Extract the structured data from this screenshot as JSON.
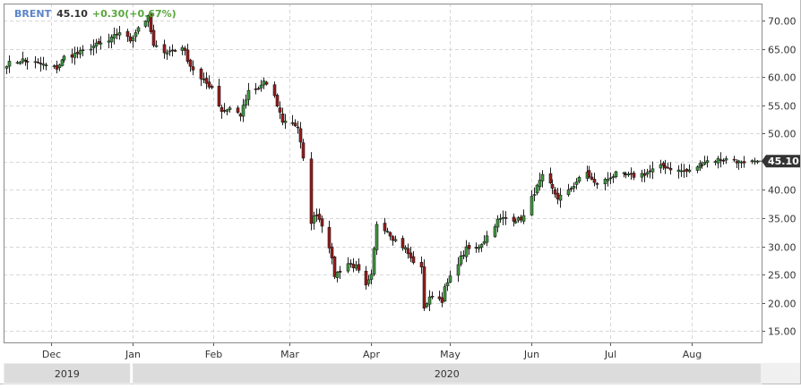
{
  "header": {
    "symbol": "BRENT",
    "last": "45.10",
    "change": "+0.30(+0.67%)"
  },
  "colors": {
    "up_candle": "#3c9a3c",
    "down_candle": "#9a1a1a",
    "wick": "#222222",
    "symbol": "#5b84c8",
    "change_positive": "#58a63c",
    "grid": "#d7d7d7",
    "price_tag_bg": "#333333",
    "year_band": "#dcdcdc"
  },
  "chart_data": {
    "type": "candlestick",
    "ylim": [
      13,
      73
    ],
    "y_ticks": [
      15,
      20,
      25,
      30,
      35,
      40,
      45,
      50,
      55,
      60,
      65,
      70
    ],
    "y_tick_labels": [
      "15.00",
      "20.00",
      "25.00",
      "30.00",
      "35.00",
      "40.00",
      "45.00",
      "50.00",
      "55.00",
      "60.00",
      "65.00",
      "70.00"
    ],
    "last_price_label": "45.10",
    "last_price": 45.1,
    "grid": true,
    "x_start": "2019-11-14",
    "x_end": "2020-08-26",
    "x_ticks": [
      {
        "date": "2019-12-01",
        "label": "Dec"
      },
      {
        "date": "2020-01-01",
        "label": "Jan"
      },
      {
        "date": "2020-02-01",
        "label": "Feb"
      },
      {
        "date": "2020-03-01",
        "label": "Mar"
      },
      {
        "date": "2020-04-01",
        "label": "Apr"
      },
      {
        "date": "2020-05-01",
        "label": "May"
      },
      {
        "date": "2020-06-01",
        "label": "Jun"
      },
      {
        "date": "2020-07-01",
        "label": "Jul"
      },
      {
        "date": "2020-08-01",
        "label": "Aug"
      }
    ],
    "year_bands": [
      {
        "label": "2019",
        "from": "2019-11-14",
        "to": "2019-12-31"
      },
      {
        "label": "2020",
        "from": "2020-01-01",
        "to": "2020-08-26"
      }
    ],
    "price_path": [
      [
        "2019-11-14",
        62.3
      ],
      [
        "2019-11-20",
        63.0
      ],
      [
        "2019-11-25",
        62.5
      ],
      [
        "2019-11-29",
        62.0
      ],
      [
        "2019-12-03",
        61.6
      ],
      [
        "2019-12-06",
        63.5
      ],
      [
        "2019-12-12",
        64.3
      ],
      [
        "2019-12-17",
        65.5
      ],
      [
        "2019-12-23",
        66.3
      ],
      [
        "2019-12-27",
        68.0
      ],
      [
        "2019-12-31",
        66.5
      ],
      [
        "2020-01-03",
        68.8
      ],
      [
        "2020-01-07",
        70.5
      ],
      [
        "2020-01-09",
        65.4
      ],
      [
        "2020-01-14",
        64.5
      ],
      [
        "2020-01-17",
        64.7
      ],
      [
        "2020-01-20",
        65.5
      ],
      [
        "2020-01-23",
        62.0
      ],
      [
        "2020-01-27",
        59.5
      ],
      [
        "2020-01-31",
        58.2
      ],
      [
        "2020-02-04",
        54.0
      ],
      [
        "2020-02-07",
        54.5
      ],
      [
        "2020-02-11",
        53.3
      ],
      [
        "2020-02-14",
        57.3
      ],
      [
        "2020-02-18",
        57.8
      ],
      [
        "2020-02-20",
        59.3
      ],
      [
        "2020-02-24",
        56.3
      ],
      [
        "2020-02-27",
        52.2
      ],
      [
        "2020-03-02",
        51.9
      ],
      [
        "2020-03-04",
        51.1
      ],
      [
        "2020-03-06",
        45.3
      ],
      [
        "2020-03-09",
        34.4
      ],
      [
        "2020-03-11",
        35.8
      ],
      [
        "2020-03-13",
        33.9
      ],
      [
        "2020-03-16",
        30.1
      ],
      [
        "2020-03-18",
        24.9
      ],
      [
        "2020-03-23",
        27.0
      ],
      [
        "2020-03-26",
        26.3
      ],
      [
        "2020-03-30",
        22.8
      ],
      [
        "2020-04-01",
        24.7
      ],
      [
        "2020-04-03",
        34.1
      ],
      [
        "2020-04-07",
        32.9
      ],
      [
        "2020-04-09",
        31.5
      ],
      [
        "2020-04-14",
        29.6
      ],
      [
        "2020-04-16",
        27.8
      ],
      [
        "2020-04-20",
        26.0
      ],
      [
        "2020-04-21",
        19.3
      ],
      [
        "2020-04-24",
        21.4
      ],
      [
        "2020-04-28",
        20.5
      ],
      [
        "2020-04-29",
        22.5
      ],
      [
        "2020-05-04",
        27.2
      ],
      [
        "2020-05-07",
        29.5
      ],
      [
        "2020-05-11",
        29.6
      ],
      [
        "2020-05-14",
        31.1
      ],
      [
        "2020-05-19",
        34.6
      ],
      [
        "2020-05-22",
        35.1
      ],
      [
        "2020-05-27",
        34.7
      ],
      [
        "2020-05-29",
        35.3
      ],
      [
        "2020-06-02",
        39.6
      ],
      [
        "2020-06-05",
        42.3
      ],
      [
        "2020-06-08",
        40.8
      ],
      [
        "2020-06-11",
        38.6
      ],
      [
        "2020-06-15",
        39.7
      ],
      [
        "2020-06-18",
        41.5
      ],
      [
        "2020-06-22",
        43.1
      ],
      [
        "2020-06-25",
        41.1
      ],
      [
        "2020-06-29",
        41.7
      ],
      [
        "2020-07-03",
        42.8
      ],
      [
        "2020-07-09",
        42.4
      ],
      [
        "2020-07-14",
        42.9
      ],
      [
        "2020-07-21",
        44.3
      ],
      [
        "2020-07-27",
        43.4
      ],
      [
        "2020-07-31",
        43.3
      ],
      [
        "2020-08-06",
        45.1
      ],
      [
        "2020-08-12",
        45.4
      ],
      [
        "2020-08-17",
        45.4
      ],
      [
        "2020-08-21",
        44.4
      ],
      [
        "2020-08-26",
        45.1
      ]
    ]
  }
}
